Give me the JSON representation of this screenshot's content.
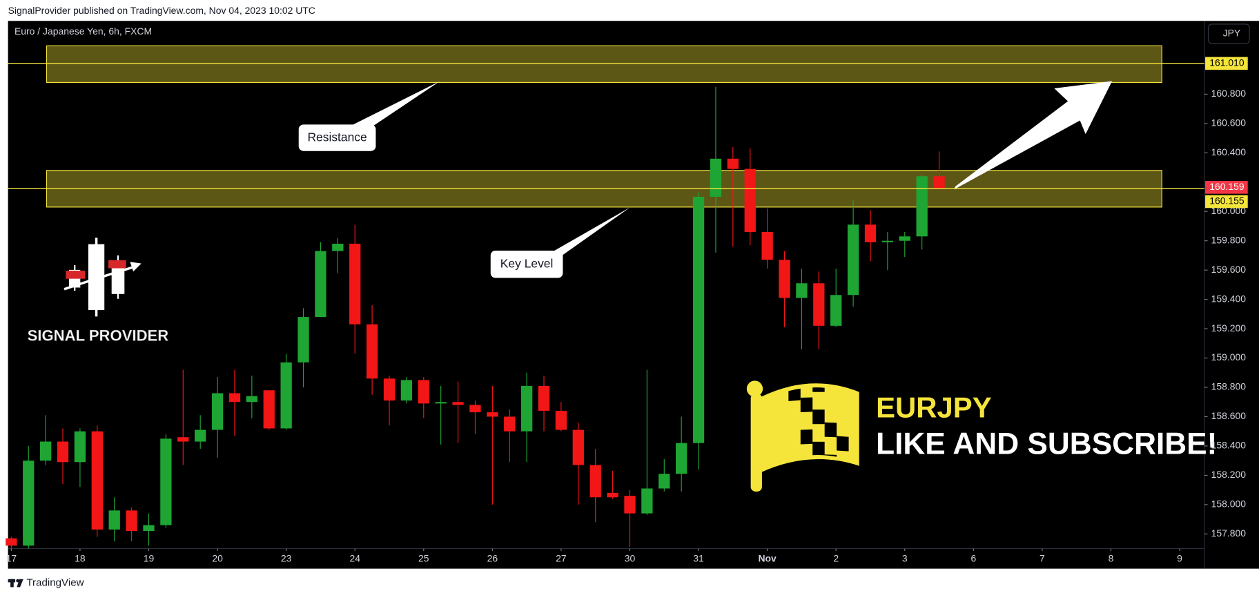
{
  "header": "SignalProvider published on TradingView.com, Nov 04, 2023 10:02 UTC",
  "footer": "TradingView",
  "chart_data": {
    "type": "candlestick",
    "title": "Euro / Japanese Yen, 6h, FXCM",
    "currency": "JPY",
    "x": [
      0,
      1,
      2,
      3,
      4,
      5,
      6,
      7,
      8,
      9,
      10,
      11,
      12,
      13,
      14,
      15,
      16,
      17,
      18,
      19,
      20,
      21,
      22,
      23,
      24,
      25,
      26,
      27,
      28,
      29,
      30,
      31,
      32,
      33,
      34,
      35,
      36,
      37,
      38,
      39,
      40,
      41,
      42,
      43,
      44,
      45,
      46,
      47,
      48,
      49,
      50,
      51,
      52,
      53,
      54
    ],
    "open": [
      157.77,
      157.72,
      158.3,
      158.43,
      158.29,
      158.5,
      157.83,
      157.96,
      157.82,
      157.86,
      158.46,
      158.43,
      158.51,
      158.76,
      158.7,
      158.78,
      158.52,
      158.97,
      159.28,
      159.73,
      159.78,
      159.23,
      158.86,
      158.71,
      158.85,
      158.69,
      158.7,
      158.68,
      158.63,
      158.6,
      158.5,
      158.81,
      158.64,
      158.51,
      158.27,
      158.08,
      158.06,
      157.94,
      158.11,
      158.21,
      158.42,
      160.1,
      160.36,
      160.29,
      159.86,
      159.67,
      159.41,
      159.51,
      159.22,
      159.43,
      159.91,
      159.79,
      159.8,
      159.83,
      160.24
    ],
    "high": [
      157.78,
      158.4,
      158.61,
      158.52,
      158.52,
      158.54,
      158.05,
      157.98,
      157.94,
      158.48,
      158.92,
      158.61,
      158.87,
      158.92,
      158.88,
      158.78,
      159.03,
      159.34,
      159.79,
      159.82,
      159.91,
      159.36,
      158.88,
      158.87,
      158.87,
      158.81,
      158.84,
      158.71,
      158.81,
      158.65,
      158.9,
      158.88,
      158.7,
      158.56,
      158.38,
      158.23,
      158.1,
      158.92,
      158.31,
      158.6,
      160.13,
      160.85,
      160.44,
      160.43,
      160.02,
      159.73,
      159.61,
      159.59,
      159.61,
      160.08,
      160.01,
      159.86,
      159.86,
      160.25,
      160.41
    ],
    "low": [
      157.7,
      157.7,
      158.27,
      158.14,
      158.12,
      157.78,
      157.75,
      157.75,
      157.72,
      157.84,
      158.27,
      158.38,
      158.32,
      158.47,
      158.59,
      158.51,
      158.51,
      158.8,
      159.28,
      159.58,
      159.03,
      158.75,
      158.54,
      158.69,
      158.59,
      158.41,
      158.42,
      158.48,
      158.0,
      158.29,
      158.29,
      158.5,
      158.5,
      158.0,
      157.88,
      158.04,
      157.71,
      157.93,
      158.09,
      158.09,
      158.24,
      159.72,
      159.76,
      159.77,
      159.61,
      159.21,
      159.06,
      159.06,
      159.21,
      159.35,
      159.66,
      159.6,
      159.69,
      159.74,
      160.15
    ],
    "close": [
      157.72,
      158.3,
      158.43,
      158.29,
      158.5,
      157.83,
      157.96,
      157.82,
      157.86,
      158.45,
      158.43,
      158.51,
      158.76,
      158.7,
      158.74,
      158.52,
      158.97,
      159.28,
      159.73,
      159.78,
      159.23,
      158.86,
      158.71,
      158.85,
      158.69,
      158.7,
      158.68,
      158.63,
      158.6,
      158.5,
      158.81,
      158.64,
      158.51,
      158.27,
      158.05,
      158.05,
      157.94,
      158.11,
      158.21,
      158.42,
      160.1,
      160.36,
      160.29,
      159.86,
      159.67,
      159.41,
      159.51,
      159.22,
      159.43,
      159.91,
      159.79,
      159.8,
      159.83,
      160.24,
      160.159
    ],
    "up_color": "#1fa533",
    "down_color": "#f21616",
    "xlim": [
      -0.19,
      69.44
    ],
    "xticks": [
      {
        "value": 0,
        "label": "17"
      },
      {
        "value": 4,
        "label": "18"
      },
      {
        "value": 8,
        "label": "19"
      },
      {
        "value": 12,
        "label": "20"
      },
      {
        "value": 16,
        "label": "23"
      },
      {
        "value": 20,
        "label": "24"
      },
      {
        "value": 24,
        "label": "25"
      },
      {
        "value": 28,
        "label": "26"
      },
      {
        "value": 32,
        "label": "27"
      },
      {
        "value": 36,
        "label": "30"
      },
      {
        "value": 40,
        "label": "31"
      },
      {
        "value": 44,
        "label": "Nov"
      },
      {
        "value": 48,
        "label": "2"
      },
      {
        "value": 52,
        "label": "3"
      },
      {
        "value": 56,
        "label": "6"
      },
      {
        "value": 60,
        "label": "7"
      },
      {
        "value": 64,
        "label": "8"
      },
      {
        "value": 68,
        "label": "9"
      }
    ],
    "ylim": [
      157.7,
      161.3
    ],
    "yticks": [
      {
        "value": 157.8,
        "label": "157.800"
      },
      {
        "value": 158.0,
        "label": "158.000"
      },
      {
        "value": 158.2,
        "label": "158.200"
      },
      {
        "value": 158.4,
        "label": "158.400"
      },
      {
        "value": 158.6,
        "label": "158.600"
      },
      {
        "value": 158.8,
        "label": "158.800"
      },
      {
        "value": 159.0,
        "label": "159.000"
      },
      {
        "value": 159.2,
        "label": "159.200"
      },
      {
        "value": 159.4,
        "label": "159.400"
      },
      {
        "value": 159.6,
        "label": "159.600"
      },
      {
        "value": 159.8,
        "label": "159.800"
      },
      {
        "value": 160.0,
        "label": "160.000"
      },
      {
        "value": 160.4,
        "label": "160.400"
      },
      {
        "value": 160.6,
        "label": "160.600"
      },
      {
        "value": 160.8,
        "label": "160.800"
      }
    ],
    "zones": [
      {
        "top": 161.13,
        "bottom": 160.88,
        "label": "Resistance"
      },
      {
        "top": 160.28,
        "bottom": 160.03,
        "label": "Key Level"
      }
    ],
    "zone_color": "#f5e53b",
    "price_lines": [
      {
        "value": 161.01,
        "label": "161.010"
      },
      {
        "value": 160.155,
        "label": "160.155"
      }
    ],
    "last_price": {
      "value": 160.159,
      "label": "160.159",
      "color": "#f23645"
    },
    "brand": "SIGNAL PROVIDER",
    "symbol": "EURJPY",
    "cta": "LIKE AND SUBSCRIBE!"
  }
}
